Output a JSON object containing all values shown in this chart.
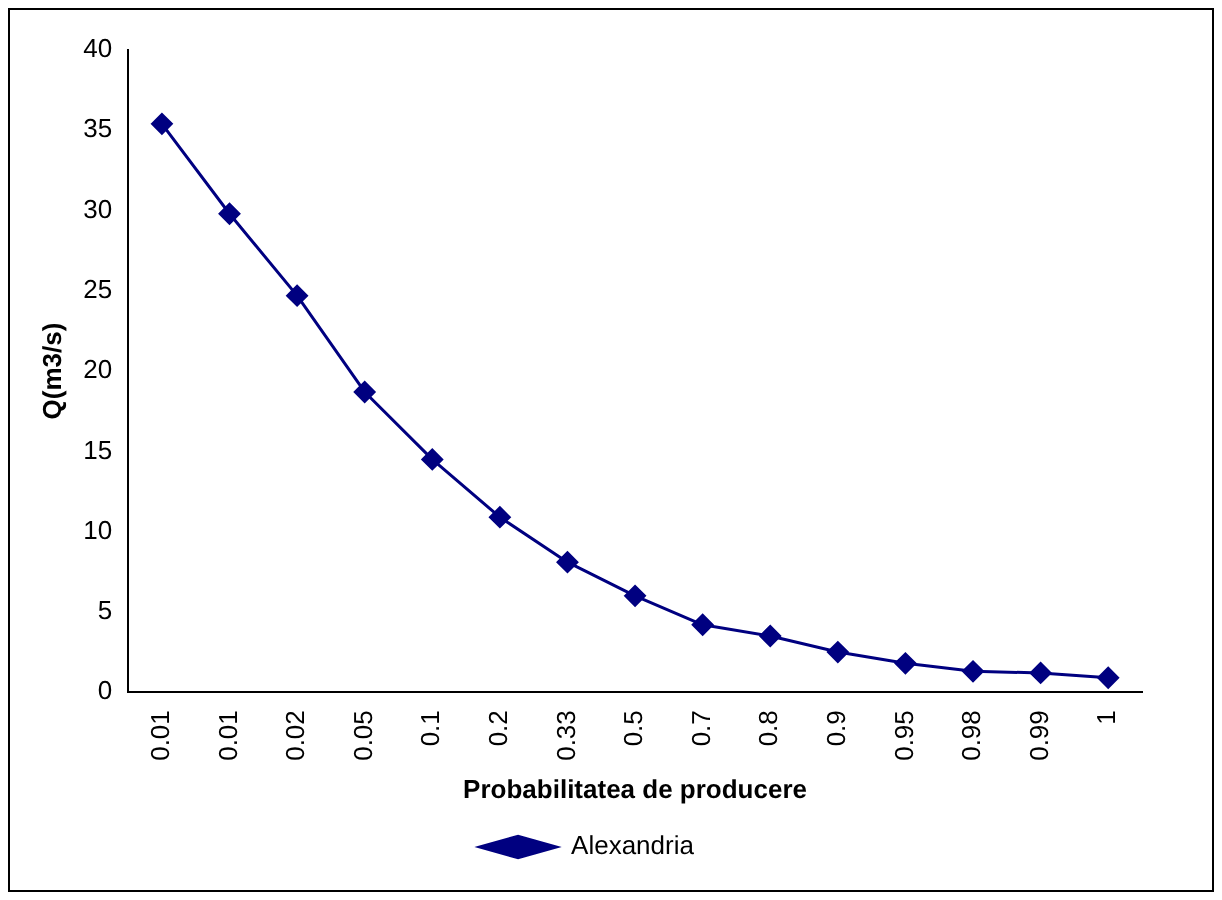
{
  "chart_data": {
    "type": "line",
    "xlabel": "Probabilitatea de producere",
    "ylabel": "Q(m3/s)",
    "categories": [
      "0.01",
      "0.01",
      "0.02",
      "0.05",
      "0.1",
      "0.2",
      "0.33",
      "0.5",
      "0.7",
      "0.8",
      "0.9",
      "0.95",
      "0.98",
      "0.99",
      "1"
    ],
    "series": [
      {
        "name": "Alexandria",
        "color": "#000080",
        "values": [
          35.4,
          29.8,
          24.7,
          18.7,
          14.5,
          10.9,
          8.1,
          6.0,
          4.2,
          3.5,
          2.5,
          1.8,
          1.3,
          1.2,
          0.9
        ]
      }
    ],
    "ylim": [
      0,
      40
    ],
    "yticks": [
      0,
      5,
      10,
      15,
      20,
      25,
      30,
      35,
      40
    ],
    "grid": false,
    "legend": "bottom",
    "marker": "diamond",
    "line_style": "solid"
  }
}
